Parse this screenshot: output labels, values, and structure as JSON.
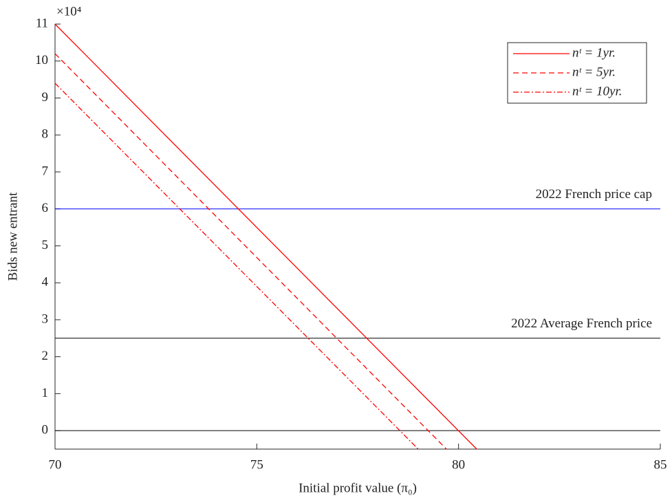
{
  "chart_data": {
    "type": "line",
    "xlabel": "Initial profit value (π₀)",
    "ylabel": "Bids new entrant",
    "y_multiplier": "×10⁴",
    "xlim": [
      70,
      85
    ],
    "xticks": [
      70,
      75,
      80,
      85
    ],
    "ylim": [
      -0.5,
      11
    ],
    "yticks": [
      0,
      1,
      2,
      3,
      4,
      5,
      6,
      7,
      8,
      9,
      10,
      11
    ],
    "legend": "upper right",
    "series": [
      {
        "name": "nᵗ = 1yr.",
        "color": "#ff0000",
        "dash": "solid",
        "x": [
          70,
          80.45
        ],
        "values": [
          11,
          -0.5
        ]
      },
      {
        "name": "nᵗ = 5yr.",
        "color": "#ff0000",
        "dash": "dashed",
        "x": [
          70,
          79.7
        ],
        "values": [
          10.2,
          -0.5
        ]
      },
      {
        "name": "nᵗ = 10yr.",
        "color": "#ff0000",
        "dash": "dashdot",
        "x": [
          70,
          79.0
        ],
        "values": [
          9.4,
          -0.5
        ]
      }
    ],
    "hlines": [
      {
        "label": "2022 French price cap",
        "value": 6,
        "color": "#0000ff"
      },
      {
        "label": "2022 Average French price",
        "value": 2.5,
        "color": "#000000"
      },
      {
        "value": 0,
        "color": "#000000"
      }
    ]
  }
}
